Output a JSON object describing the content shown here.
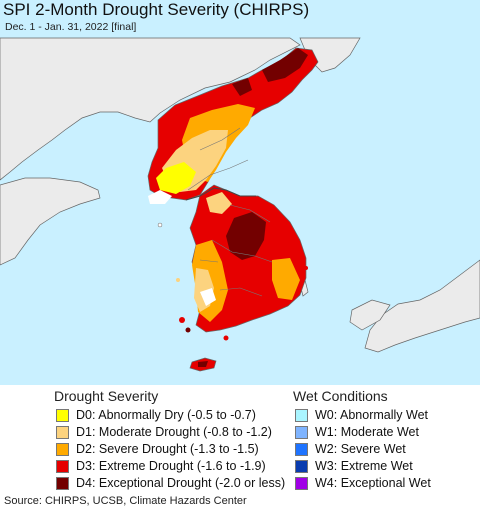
{
  "header": {
    "title": "SPI 2-Month Drought Severity (CHIRPS)",
    "subtitle": "Dec. 1 - Jan. 31, 2022 [final]"
  },
  "legend": {
    "drought_heading": "Drought Severity",
    "drought_items": [
      {
        "label": "D0: Abnormally Dry (-0.5 to -0.7)",
        "color": "#ffff00"
      },
      {
        "label": "D1: Moderate Drought (-0.8 to -1.2)",
        "color": "#fcd37f"
      },
      {
        "label": "D2: Severe Drought (-1.3 to -1.5)",
        "color": "#ffaa00"
      },
      {
        "label": "D3: Extreme Drought (-1.6 to -1.9)",
        "color": "#e60000"
      },
      {
        "label": "D4: Exceptional Drought (-2.0 or less)",
        "color": "#730000"
      }
    ],
    "wet_heading": "Wet Conditions",
    "wet_items": [
      {
        "label": "W0: Abnormally Wet",
        "color": "#aaf5ff"
      },
      {
        "label": "W1: Moderate Wet",
        "color": "#7fb4ff"
      },
      {
        "label": "W2: Severe Wet",
        "color": "#1e73ff"
      },
      {
        "label": "W3: Extreme Wet",
        "color": "#0a3caf"
      },
      {
        "label": "W4: Exceptional Wet",
        "color": "#a000e6"
      }
    ]
  },
  "footer": {
    "source": "Source: CHIRPS, UCSB, Climate Hazards Center"
  },
  "map": {
    "water_color": "#c9f0ff",
    "land_color": "#ebebeb",
    "border_color": "#555555"
  }
}
